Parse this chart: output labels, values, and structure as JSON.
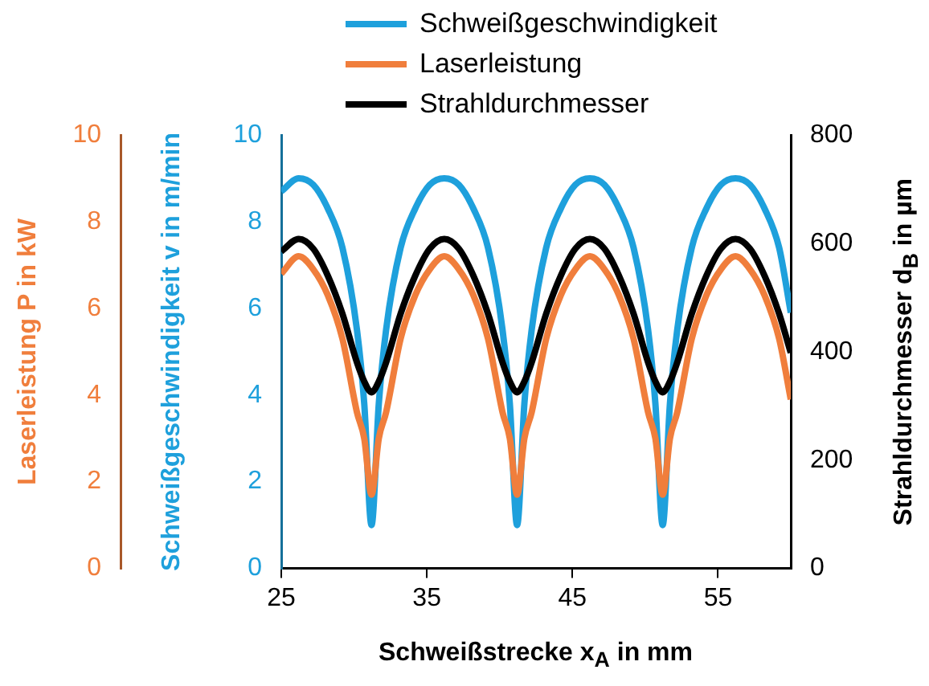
{
  "chart_data": {
    "type": "line",
    "xlabel": "Schweißstrecke x$_{A}$ in mm",
    "ylabel": "Schweißgeschwindigkeit v in m/min",
    "y2label": "Strahldurchmesser d$_{B}$ in µm",
    "y3label": "Laserleistung P in kW",
    "x": [
      25,
      26.2,
      27.2,
      28.2,
      29.2,
      30.2,
      30.7,
      31.2,
      31.7,
      32.2,
      33.2,
      34.2,
      35.2,
      36.2,
      37.2,
      38.2,
      39.2,
      40.2,
      40.7,
      41.2,
      41.7,
      42.2,
      43.2,
      44.2,
      45.2,
      46.2,
      47.2,
      48.2,
      49.2,
      50.2,
      50.7,
      51.2,
      51.7,
      52.2,
      53.2,
      54.2,
      55.2,
      56.2,
      57.2,
      58.2,
      59.2,
      60
    ],
    "series": [
      {
        "name": "Schweißgeschwindigkeit",
        "color": "#1ea0dc",
        "axis": "y",
        "values": [
          8.7,
          9.0,
          8.85,
          8.3,
          7.4,
          5.5,
          3.8,
          1.0,
          3.8,
          5.5,
          7.4,
          8.3,
          8.85,
          9.0,
          8.85,
          8.3,
          7.4,
          5.5,
          3.8,
          1.0,
          3.8,
          5.5,
          7.4,
          8.3,
          8.85,
          9.0,
          8.85,
          8.3,
          7.4,
          5.5,
          3.8,
          1.0,
          3.8,
          5.5,
          7.4,
          8.3,
          8.85,
          9.0,
          8.85,
          8.3,
          7.4,
          5.9
        ]
      },
      {
        "name": "Laserleistung",
        "color": "#f07e3c",
        "axis": "y3",
        "values": [
          6.8,
          7.2,
          6.9,
          6.3,
          5.3,
          3.6,
          3.0,
          1.7,
          3.0,
          3.6,
          5.3,
          6.3,
          6.9,
          7.2,
          6.9,
          6.3,
          5.3,
          3.6,
          3.0,
          1.7,
          3.0,
          3.6,
          5.3,
          6.3,
          6.9,
          7.2,
          6.9,
          6.3,
          5.3,
          3.6,
          3.0,
          1.7,
          3.0,
          3.6,
          5.3,
          6.3,
          6.9,
          7.2,
          6.9,
          6.3,
          5.3,
          3.9
        ]
      },
      {
        "name": "Strahldurchmesser",
        "color": "#000000",
        "axis": "y2",
        "values": [
          585,
          608,
          590,
          540,
          470,
          380,
          345,
          325,
          345,
          380,
          470,
          540,
          590,
          608,
          590,
          540,
          470,
          380,
          345,
          325,
          345,
          380,
          470,
          540,
          590,
          608,
          590,
          540,
          470,
          380,
          345,
          325,
          345,
          380,
          470,
          540,
          590,
          608,
          590,
          540,
          470,
          398
        ]
      }
    ],
    "xlim": [
      25,
      60
    ],
    "xticks": [
      25,
      35,
      45,
      55
    ],
    "ylim": [
      0,
      10
    ],
    "yticks": [
      0,
      2,
      4,
      6,
      8,
      10
    ],
    "y2lim": [
      0,
      800
    ],
    "y2ticks": [
      0,
      200,
      400,
      600,
      800
    ],
    "y3lim": [
      0,
      10
    ],
    "y3ticks": [
      0,
      2,
      4,
      6,
      8,
      10
    ],
    "grid": false,
    "legend": "top"
  }
}
